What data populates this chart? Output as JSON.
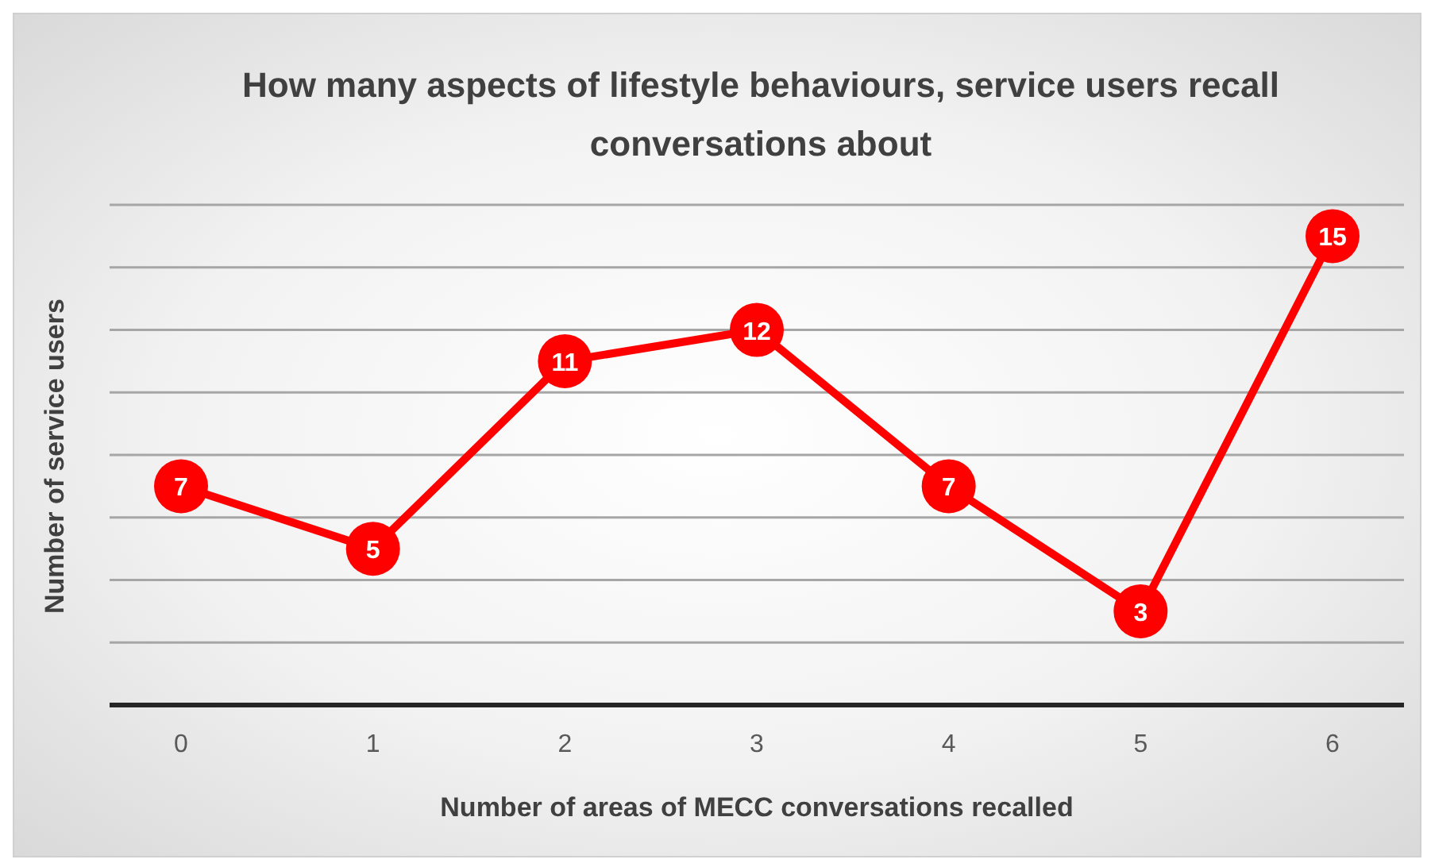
{
  "chart_data": {
    "type": "line",
    "title": "How many aspects of lifestyle behaviours, service users recall conversations about",
    "xlabel": "Number of areas of MECC conversations recalled",
    "ylabel": "Number of service users",
    "categories": [
      "0",
      "1",
      "2",
      "3",
      "4",
      "5",
      "6"
    ],
    "series": [
      {
        "color": "#ff0000",
        "values": [
          7,
          5,
          11,
          12,
          7,
          3,
          15
        ]
      }
    ],
    "ylim": [
      0,
      16
    ],
    "grid": "y",
    "tick_labels": "x",
    "data_labels": true,
    "marker": "circle",
    "line_style": "solid",
    "legend": false
  }
}
